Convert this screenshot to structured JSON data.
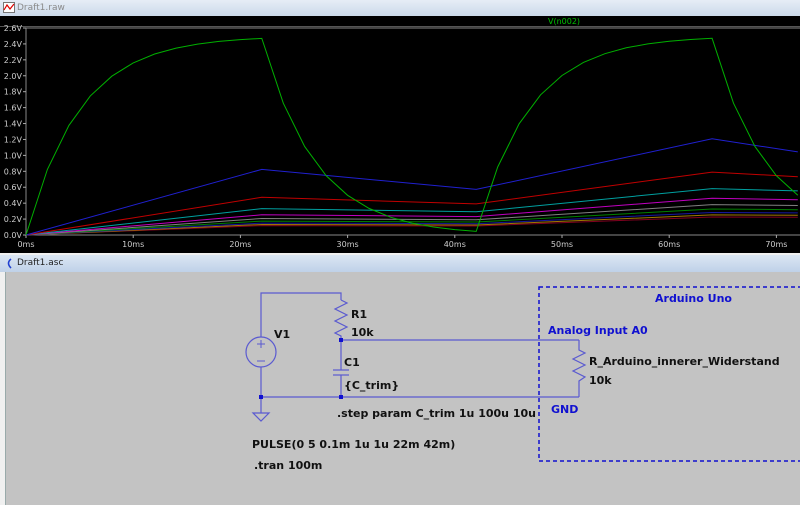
{
  "waveform_window": {
    "title": "Draft1.raw",
    "icon": "waveform-icon"
  },
  "schematic_window": {
    "title": "Draft1.asc",
    "icon": "schematic-icon"
  },
  "chart_data": {
    "type": "line",
    "title": "",
    "xlabel": "",
    "ylabel": "",
    "xlim": [
      0,
      72
    ],
    "ylim": [
      0,
      2.6
    ],
    "grid": false,
    "x_ticks": [
      "0ms",
      "10ms",
      "20ms",
      "30ms",
      "40ms",
      "50ms",
      "60ms",
      "70ms"
    ],
    "x_tick_values": [
      0,
      10,
      20,
      30,
      40,
      50,
      60,
      70
    ],
    "y_ticks": [
      "0.0V",
      "0.2V",
      "0.4V",
      "0.6V",
      "0.8V",
      "1.0V",
      "1.2V",
      "1.4V",
      "1.6V",
      "1.8V",
      "2.0V",
      "2.2V",
      "2.4V",
      "2.6V"
    ],
    "y_tick_values": [
      0,
      0.2,
      0.4,
      0.6,
      0.8,
      1.0,
      1.2,
      1.4,
      1.6,
      1.8,
      2.0,
      2.2,
      2.4,
      2.6
    ],
    "legend": "top-center",
    "series": [
      {
        "name": "V(n002)",
        "color": "#00b000",
        "x": [
          0,
          2,
          4,
          6,
          8,
          10,
          12,
          14,
          16,
          18,
          20,
          22,
          24,
          26,
          28,
          30,
          32,
          34,
          36,
          38,
          40,
          42,
          44,
          46,
          48,
          50,
          52,
          54,
          56,
          58,
          60,
          62,
          64,
          66,
          68,
          70,
          72
        ],
        "y": [
          0,
          0.824,
          1.377,
          1.747,
          1.995,
          2.162,
          2.273,
          2.348,
          2.398,
          2.432,
          2.454,
          2.469,
          1.655,
          1.11,
          0.744,
          0.499,
          0.334,
          0.224,
          0.15,
          0.101,
          0.068,
          0.045,
          0.854,
          1.397,
          1.761,
          2.004,
          2.168,
          2.277,
          2.351,
          2.4,
          2.433,
          2.455,
          2.47,
          1.656,
          1.11,
          0.744,
          0.499
        ]
      },
      {
        "color": "#2020d0",
        "x": [
          0,
          22,
          42,
          64,
          72
        ],
        "y": [
          0,
          0.824,
          0.573,
          1.208,
          1.044
        ]
      },
      {
        "color": "#c00000",
        "x": [
          0,
          22,
          42,
          64,
          72
        ],
        "y": [
          0,
          0.473,
          0.391,
          0.79,
          0.732
        ]
      },
      {
        "color": "#00a0a0",
        "x": [
          0,
          22,
          42,
          64,
          72
        ],
        "y": [
          0,
          0.331,
          0.291,
          0.583,
          0.554
        ]
      },
      {
        "color": "#c000c0",
        "x": [
          0,
          22,
          42,
          64,
          72
        ],
        "y": [
          0,
          0.254,
          0.231,
          0.462,
          0.444
        ]
      },
      {
        "color": "#808080",
        "x": [
          0,
          22,
          42,
          64,
          72
        ],
        "y": [
          0,
          0.207,
          0.191,
          0.382,
          0.37
        ]
      },
      {
        "color": "#008000",
        "x": [
          0,
          22,
          42,
          64,
          72
        ],
        "y": [
          0,
          0.174,
          0.163,
          0.326,
          0.318
        ]
      },
      {
        "color": "#1818a0",
        "x": [
          0,
          22,
          42,
          64,
          72
        ],
        "y": [
          0,
          0.15,
          0.142,
          0.283,
          0.277
        ]
      },
      {
        "color": "#a07800",
        "x": [
          0,
          22,
          42,
          64,
          72
        ],
        "y": [
          0,
          0.132,
          0.126,
          0.252,
          0.247
        ]
      },
      {
        "color": "#800020",
        "x": [
          0,
          22,
          42,
          64,
          72
        ],
        "y": [
          0,
          0.118,
          0.113,
          0.226,
          0.222
        ]
      }
    ]
  },
  "schematic": {
    "v1": {
      "name": "V1",
      "value": "PULSE(0 5 0.1m 1u 1u 22m 42m)"
    },
    "r1": {
      "name": "R1",
      "value": "10k"
    },
    "c1": {
      "name": "C1",
      "value": "{C_trim}"
    },
    "step_directive": ".step param C_trim 1u 100u 10u",
    "tran_directive": ".tran 100m",
    "arduino_box": {
      "title": "Arduino Uno",
      "input_label": "Analog Input A0",
      "gnd_label": "GND"
    },
    "r_arduino": {
      "name": "R_Arduino_innerer_Widerstand",
      "value": "10k"
    },
    "wire_color": "#5a5ad0",
    "box_color": "#1010d0"
  }
}
